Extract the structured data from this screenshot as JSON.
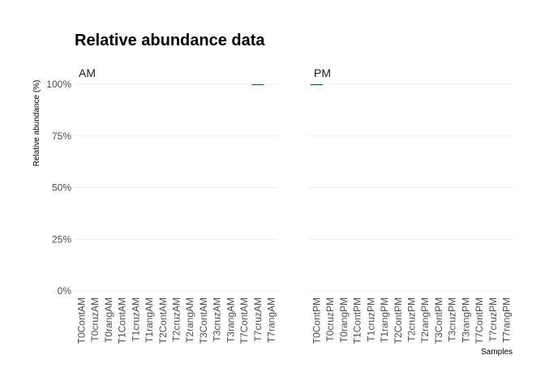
{
  "chart_data": {
    "type": "bar",
    "stacked": true,
    "title": "Relative abundance data",
    "xlabel": "Samples",
    "ylabel": "Relative abundance (%)",
    "ylim": [
      0,
      100
    ],
    "yticks": [
      "0%",
      "25%",
      "50%",
      "75%",
      "100%"
    ],
    "ytick_values": [
      0,
      25,
      50,
      75,
      100
    ],
    "grid": true,
    "bar_color": "#1b5e3a",
    "facets": [
      {
        "label": "AM",
        "categories": [
          "T0ContAM",
          "T0cruzAM",
          "T0rangAM",
          "T1ContAM",
          "T1cruzAM",
          "T1rangAM",
          "T2ContAM",
          "T2cruzAM",
          "T2rangAM",
          "T3ContAM",
          "T3cruzAM",
          "T3rangAM",
          "T7ContAM",
          "T7cruzAM",
          "T7rangAM"
        ],
        "values": [
          0,
          0,
          0,
          0,
          0,
          0,
          0,
          0,
          0,
          0,
          0,
          0,
          0,
          100,
          0
        ]
      },
      {
        "label": "PM",
        "categories": [
          "T0ContPM",
          "T0cruzPM",
          "T0rangPM",
          "T1ContPM",
          "T1cruzPM",
          "T1rangPM",
          "T2ContPM",
          "T2cruzPM",
          "T2rangPM",
          "T3ContPM",
          "T3cruzPM",
          "T3rangPM",
          "T7ContPM",
          "T7cruzPM",
          "T7rangPM"
        ],
        "values": [
          100,
          0,
          0,
          0,
          0,
          0,
          0,
          0,
          0,
          0,
          0,
          0,
          0,
          0,
          0
        ]
      }
    ]
  }
}
